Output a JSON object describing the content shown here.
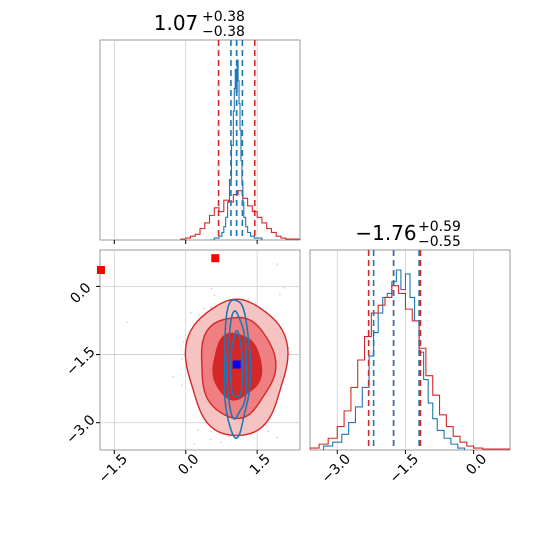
{
  "chart_data": [
    {
      "type": "histogram",
      "panel": "top-left",
      "parameter_index": 0,
      "title": {
        "median": "1.07",
        "plus": "+0.38",
        "minus": "−0.38"
      },
      "xlim": [
        -1.8,
        2.4
      ],
      "xticks": [
        -1.5,
        0.0,
        1.5
      ],
      "gridlines_x": [
        -1.5,
        0.0,
        1.5
      ],
      "series": [
        {
          "color": "#1f77b4",
          "bins": [
            0.5,
            0.6,
            0.7,
            0.76,
            0.8,
            0.84,
            0.88,
            0.92,
            0.96,
            1.0,
            1.02,
            1.04,
            1.06,
            1.08,
            1.1,
            1.12,
            1.14,
            1.16,
            1.18,
            1.2,
            1.22,
            1.26,
            1.3,
            1.36,
            1.44,
            1.6
          ],
          "counts": [
            0.0,
            0.01,
            0.02,
            0.04,
            0.07,
            0.12,
            0.2,
            0.32,
            0.5,
            0.68,
            0.8,
            0.9,
            0.78,
            0.95,
            0.84,
            0.72,
            0.58,
            0.42,
            0.3,
            0.2,
            0.12,
            0.07,
            0.04,
            0.02,
            0.01
          ]
        },
        {
          "color": "#d62728",
          "bins": [
            -0.1,
            0.0,
            0.1,
            0.2,
            0.3,
            0.4,
            0.5,
            0.6,
            0.7,
            0.8,
            0.9,
            1.0,
            1.1,
            1.2,
            1.3,
            1.4,
            1.5,
            1.6,
            1.7,
            1.8,
            1.9,
            2.0,
            2.1,
            2.2,
            2.3,
            2.4
          ],
          "counts": [
            0.005,
            0.01,
            0.02,
            0.03,
            0.06,
            0.09,
            0.13,
            0.17,
            0.15,
            0.21,
            0.2,
            0.24,
            0.26,
            0.22,
            0.18,
            0.15,
            0.12,
            0.09,
            0.06,
            0.04,
            0.02,
            0.01,
            0.005,
            0.005,
            0.005
          ]
        }
      ],
      "quantile_lines": [
        {
          "color": "#d62728",
          "x": [
            0.69,
            1.07,
            1.45
          ]
        },
        {
          "color": "#1f77b4",
          "x": [
            0.95,
            1.07,
            1.19
          ]
        }
      ]
    },
    {
      "type": "contour",
      "panel": "bottom-left",
      "xlim": [
        -1.8,
        2.4
      ],
      "ylim": [
        -3.6,
        0.8
      ],
      "xticks": [
        -1.5,
        0.0,
        1.5
      ],
      "yticks": [
        0.0,
        -1.5,
        -3.0
      ],
      "gridlines_x": [
        -1.5,
        0.0,
        1.5
      ],
      "gridlines_y": [
        0.0,
        -1.5,
        -3.0
      ],
      "red_contours": {
        "center": [
          1.07,
          -1.76
        ],
        "sigma": [
          0.42,
          0.6
        ],
        "levels": [
          1.2,
          1.85,
          2.5
        ],
        "fill_colors": [
          "#d62728",
          "#ef7f80",
          "#f6c3c3"
        ]
      },
      "blue_contours": {
        "center": [
          1.07,
          -1.76
        ],
        "sigma": [
          0.13,
          0.72
        ],
        "levels": [
          1.0,
          1.6,
          2.1
        ],
        "color": "#1f77b4"
      },
      "markers": [
        {
          "color": "#ff0000",
          "x": -1.78,
          "y": 0.36
        },
        {
          "color": "#ff0000",
          "x": 0.62,
          "y": 0.62
        },
        {
          "color": "#0000ff",
          "x": 1.07,
          "y": -1.72
        }
      ]
    },
    {
      "type": "histogram",
      "panel": "bottom-right",
      "parameter_index": 1,
      "title": {
        "median": "−1.76",
        "plus": "+0.59",
        "minus": "−0.55"
      },
      "xlim": [
        -3.6,
        0.8
      ],
      "xticks": [
        -3.0,
        -1.5,
        0.0
      ],
      "gridlines_x": [
        -3.0,
        -1.5,
        0.0
      ],
      "series": [
        {
          "color": "#1f77b4",
          "bins": [
            -3.3,
            -3.1,
            -2.9,
            -2.75,
            -2.6,
            -2.45,
            -2.3,
            -2.2,
            -2.1,
            -2.0,
            -1.9,
            -1.8,
            -1.7,
            -1.6,
            -1.5,
            -1.4,
            -1.3,
            -1.2,
            -1.1,
            -1.0,
            -0.9,
            -0.8,
            -0.65,
            -0.5,
            -0.35,
            -0.2
          ],
          "counts": [
            0.02,
            0.04,
            0.08,
            0.14,
            0.22,
            0.32,
            0.48,
            0.6,
            0.7,
            0.78,
            0.8,
            0.86,
            0.92,
            0.82,
            0.9,
            0.78,
            0.66,
            0.5,
            0.36,
            0.24,
            0.16,
            0.1,
            0.06,
            0.03,
            0.01
          ]
        },
        {
          "color": "#d62728",
          "bins": [
            -3.6,
            -3.4,
            -3.2,
            -3.0,
            -2.85,
            -2.7,
            -2.55,
            -2.4,
            -2.25,
            -2.1,
            -1.95,
            -1.8,
            -1.65,
            -1.5,
            -1.35,
            -1.2,
            -1.05,
            -0.9,
            -0.75,
            -0.6,
            -0.45,
            -0.3,
            -0.15,
            0.0,
            0.2,
            0.4,
            0.8
          ],
          "counts": [
            0.01,
            0.03,
            0.06,
            0.12,
            0.2,
            0.32,
            0.46,
            0.58,
            0.7,
            0.74,
            0.78,
            0.84,
            0.8,
            0.72,
            0.66,
            0.52,
            0.38,
            0.28,
            0.18,
            0.12,
            0.07,
            0.04,
            0.02,
            0.01,
            0.005,
            0.005
          ]
        }
      ],
      "quantile_lines": [
        {
          "color": "#d62728",
          "x": [
            -2.31,
            -1.76,
            -1.17
          ]
        },
        {
          "color": "#1f77b4",
          "x": [
            -2.2,
            -1.76,
            -1.2
          ]
        }
      ]
    }
  ]
}
